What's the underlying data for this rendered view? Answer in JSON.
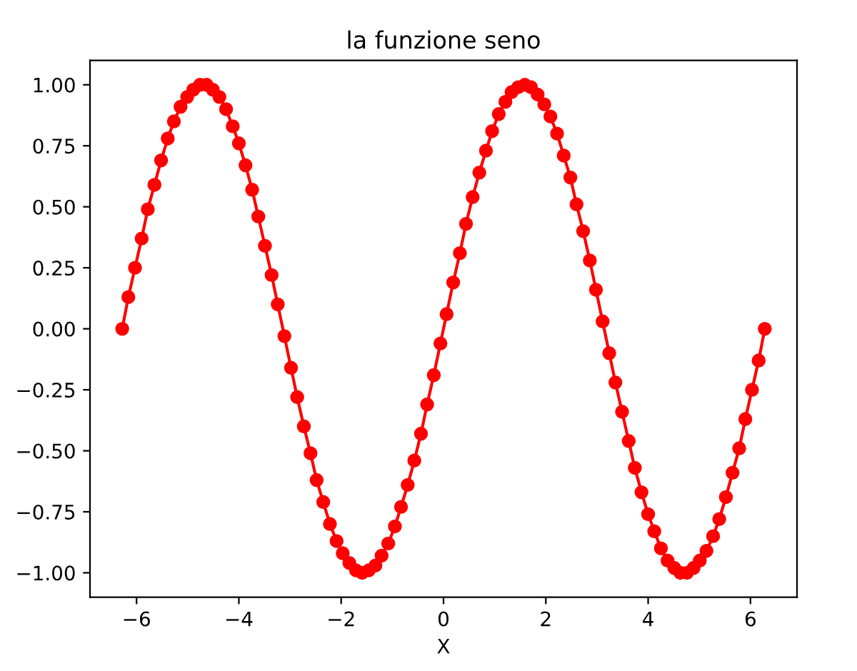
{
  "chart_data": {
    "type": "line",
    "title": "la funzione seno",
    "xlabel": "X",
    "x": [
      -6.28,
      -6.16,
      -6.03,
      -5.9,
      -5.78,
      -5.65,
      -5.52,
      -5.39,
      -5.27,
      -5.14,
      -5.01,
      -4.89,
      -4.76,
      -4.63,
      -4.51,
      -4.38,
      -4.25,
      -4.12,
      -4.0,
      -3.87,
      -3.74,
      -3.62,
      -3.49,
      -3.36,
      -3.24,
      -3.11,
      -2.98,
      -2.86,
      -2.73,
      -2.6,
      -2.48,
      -2.35,
      -2.22,
      -2.09,
      -1.97,
      -1.84,
      -1.71,
      -1.59,
      -1.46,
      -1.33,
      -1.21,
      -1.08,
      -0.95,
      -0.83,
      -0.7,
      -0.57,
      -0.44,
      -0.32,
      -0.19,
      -0.06,
      0.06,
      0.19,
      0.32,
      0.44,
      0.57,
      0.7,
      0.83,
      0.95,
      1.08,
      1.21,
      1.33,
      1.46,
      1.59,
      1.71,
      1.84,
      1.97,
      2.09,
      2.22,
      2.35,
      2.48,
      2.6,
      2.73,
      2.86,
      2.98,
      3.11,
      3.24,
      3.36,
      3.49,
      3.62,
      3.74,
      3.87,
      4.0,
      4.12,
      4.25,
      4.38,
      4.51,
      4.63,
      4.76,
      4.89,
      5.01,
      5.14,
      5.27,
      5.39,
      5.52,
      5.65,
      5.78,
      5.9,
      6.03,
      6.16,
      6.28
    ],
    "series": [
      {
        "color": "#ff0000",
        "values": [
          0.0,
          0.13,
          0.25,
          0.37,
          0.49,
          0.59,
          0.69,
          0.78,
          0.85,
          0.91,
          0.95,
          0.98,
          1.0,
          1.0,
          0.98,
          0.95,
          0.9,
          0.83,
          0.76,
          0.67,
          0.57,
          0.46,
          0.34,
          0.22,
          0.1,
          -0.03,
          -0.16,
          -0.28,
          -0.4,
          -0.51,
          -0.62,
          -0.71,
          -0.8,
          -0.87,
          -0.92,
          -0.96,
          -0.99,
          -1.0,
          -0.99,
          -0.97,
          -0.93,
          -0.88,
          -0.81,
          -0.73,
          -0.64,
          -0.54,
          -0.43,
          -0.31,
          -0.19,
          -0.06,
          0.06,
          0.19,
          0.31,
          0.43,
          0.54,
          0.64,
          0.73,
          0.81,
          0.88,
          0.93,
          0.97,
          0.99,
          1.0,
          0.99,
          0.96,
          0.92,
          0.87,
          0.8,
          0.71,
          0.62,
          0.51,
          0.4,
          0.28,
          0.16,
          0.03,
          -0.1,
          -0.22,
          -0.34,
          -0.46,
          -0.57,
          -0.67,
          -0.76,
          -0.83,
          -0.9,
          -0.95,
          -0.98,
          -1.0,
          -1.0,
          -0.98,
          -0.95,
          -0.91,
          -0.85,
          -0.78,
          -0.69,
          -0.59,
          -0.49,
          -0.37,
          -0.25,
          -0.13,
          0.0
        ]
      }
    ],
    "xlim": [
      -6.91,
      6.91
    ],
    "ylim": [
      -1.1,
      1.1
    ],
    "xticks": [
      {
        "value": -6,
        "label": "−6"
      },
      {
        "value": -4,
        "label": "−4"
      },
      {
        "value": -2,
        "label": "−2"
      },
      0,
      2,
      4,
      6
    ],
    "yticks": [
      {
        "value": -1,
        "label": "−1.00"
      },
      {
        "value": -0.75,
        "label": "−0.75"
      },
      {
        "value": -0.5,
        "label": "−0.50"
      },
      {
        "value": -0.25,
        "label": "−0.25"
      },
      {
        "value": 0,
        "label": "0.00"
      },
      {
        "value": 0.25,
        "label": "0.25"
      },
      {
        "value": 0.5,
        "label": "0.50"
      },
      {
        "value": 0.75,
        "label": "0.75"
      },
      {
        "value": 1,
        "label": "1.00"
      }
    ],
    "grid": false,
    "legend": false,
    "marker": "circle",
    "line_style": "solid"
  }
}
